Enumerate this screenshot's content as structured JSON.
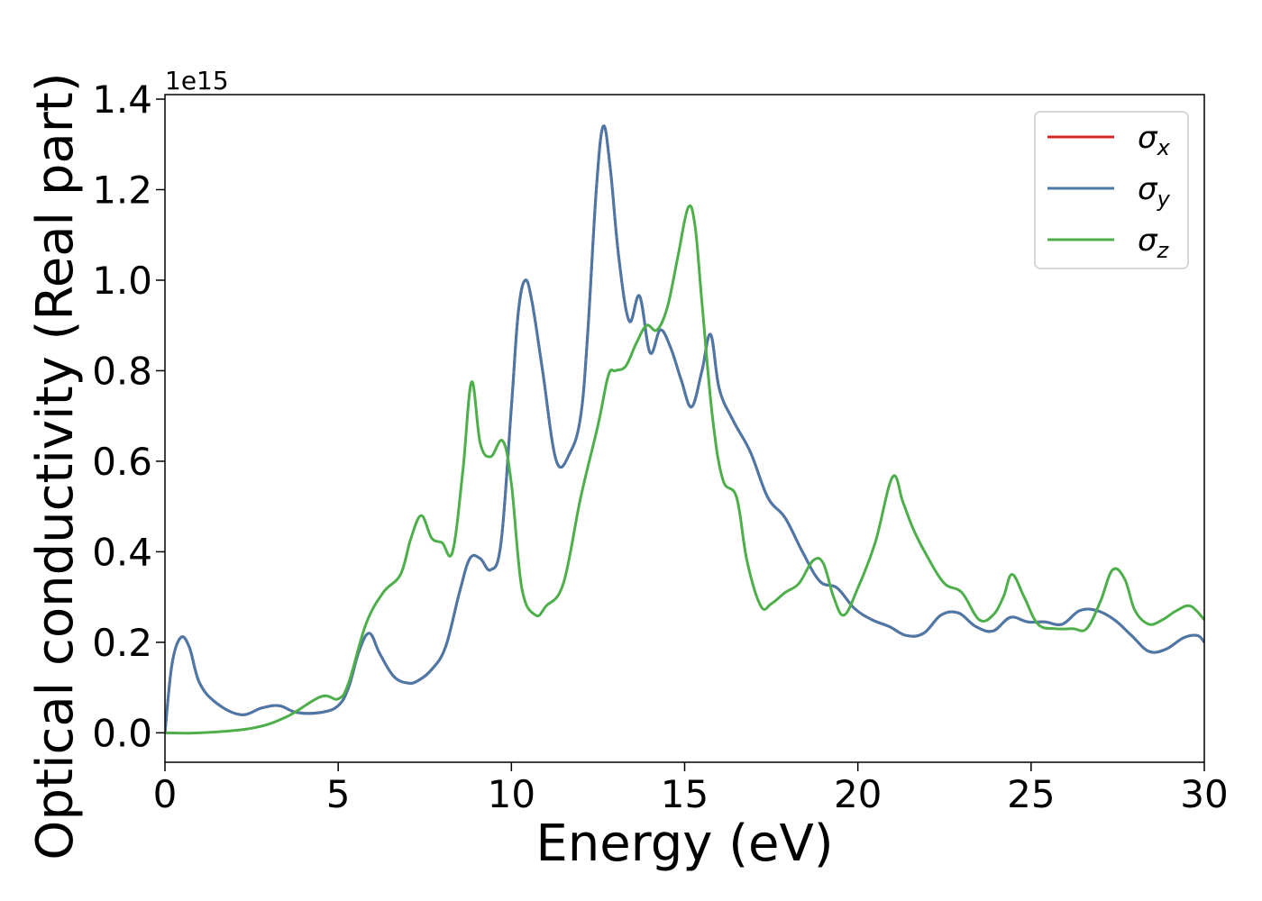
{
  "chart_data": {
    "type": "line",
    "title": "",
    "xlabel": "Energy (eV)",
    "ylabel": "Optical conductivity (Real part)",
    "y_offset_text": "1e15",
    "xlim": [
      0,
      30
    ],
    "ylim": [
      -0.065,
      1.41
    ],
    "x_ticks": [
      0,
      5,
      10,
      15,
      20,
      25,
      30
    ],
    "x_tick_labels": [
      "0",
      "5",
      "10",
      "15",
      "20",
      "25",
      "30"
    ],
    "y_ticks": [
      0.0,
      0.2,
      0.4,
      0.6,
      0.8,
      1.0,
      1.2,
      1.4
    ],
    "y_tick_labels": [
      "0.0",
      "0.2",
      "0.4",
      "0.6",
      "0.8",
      "1.0",
      "1.2",
      "1.4"
    ],
    "grid": false,
    "legend_position": "top-right",
    "series": [
      {
        "name": "σx",
        "legend_base": "σ",
        "legend_sub": "x",
        "color": "#d62728",
        "x": [
          0,
          0.2,
          0.45,
          0.7,
          1.0,
          1.5,
          2.2,
          2.8,
          3.3,
          3.8,
          4.5,
          5.0,
          5.3,
          5.6,
          5.9,
          6.2,
          6.6,
          7.0,
          7.3,
          7.7,
          8.1,
          8.5,
          8.8,
          9.1,
          9.4,
          9.7,
          10.0,
          10.2,
          10.4,
          10.6,
          10.9,
          11.3,
          11.7,
          12.0,
          12.2,
          12.45,
          12.65,
          12.85,
          13.1,
          13.4,
          13.7,
          14.0,
          14.3,
          14.6,
          14.9,
          15.2,
          15.5,
          15.75,
          16.0,
          16.4,
          16.9,
          17.4,
          17.9,
          18.4,
          18.9,
          19.4,
          19.9,
          20.4,
          20.9,
          21.4,
          21.9,
          22.4,
          22.9,
          23.4,
          23.9,
          24.4,
          24.9,
          25.4,
          25.9,
          26.4,
          26.9,
          27.4,
          27.9,
          28.4,
          28.9,
          29.4,
          29.8,
          30.0
        ],
        "y": [
          0.0,
          0.15,
          0.21,
          0.19,
          0.11,
          0.065,
          0.04,
          0.055,
          0.06,
          0.045,
          0.045,
          0.06,
          0.1,
          0.18,
          0.22,
          0.175,
          0.125,
          0.11,
          0.115,
          0.14,
          0.19,
          0.31,
          0.385,
          0.385,
          0.36,
          0.42,
          0.72,
          0.93,
          1.0,
          0.95,
          0.8,
          0.6,
          0.62,
          0.7,
          0.88,
          1.2,
          1.34,
          1.25,
          1.05,
          0.91,
          0.965,
          0.84,
          0.89,
          0.85,
          0.78,
          0.72,
          0.8,
          0.88,
          0.76,
          0.69,
          0.62,
          0.52,
          0.475,
          0.4,
          0.335,
          0.32,
          0.275,
          0.25,
          0.235,
          0.215,
          0.22,
          0.26,
          0.265,
          0.235,
          0.225,
          0.255,
          0.245,
          0.245,
          0.24,
          0.27,
          0.27,
          0.25,
          0.215,
          0.18,
          0.185,
          0.21,
          0.215,
          0.2
        ]
      },
      {
        "name": "σy",
        "legend_base": "σ",
        "legend_sub": "y",
        "color": "#4a78a8",
        "x": [
          0,
          0.2,
          0.45,
          0.7,
          1.0,
          1.5,
          2.2,
          2.8,
          3.3,
          3.8,
          4.5,
          5.0,
          5.3,
          5.6,
          5.9,
          6.2,
          6.6,
          7.0,
          7.3,
          7.7,
          8.1,
          8.5,
          8.8,
          9.1,
          9.4,
          9.7,
          10.0,
          10.2,
          10.4,
          10.6,
          10.9,
          11.3,
          11.7,
          12.0,
          12.2,
          12.45,
          12.65,
          12.85,
          13.1,
          13.4,
          13.7,
          14.0,
          14.3,
          14.6,
          14.9,
          15.2,
          15.5,
          15.75,
          16.0,
          16.4,
          16.9,
          17.4,
          17.9,
          18.4,
          18.9,
          19.4,
          19.9,
          20.4,
          20.9,
          21.4,
          21.9,
          22.4,
          22.9,
          23.4,
          23.9,
          24.4,
          24.9,
          25.4,
          25.9,
          26.4,
          26.9,
          27.4,
          27.9,
          28.4,
          28.9,
          29.4,
          29.8,
          30.0
        ],
        "y": [
          0.0,
          0.15,
          0.21,
          0.19,
          0.11,
          0.065,
          0.04,
          0.055,
          0.06,
          0.045,
          0.045,
          0.06,
          0.1,
          0.18,
          0.22,
          0.175,
          0.125,
          0.11,
          0.115,
          0.14,
          0.19,
          0.31,
          0.385,
          0.385,
          0.36,
          0.42,
          0.72,
          0.93,
          1.0,
          0.95,
          0.8,
          0.6,
          0.62,
          0.7,
          0.88,
          1.2,
          1.34,
          1.25,
          1.05,
          0.91,
          0.965,
          0.84,
          0.89,
          0.85,
          0.78,
          0.72,
          0.8,
          0.88,
          0.76,
          0.69,
          0.62,
          0.52,
          0.475,
          0.4,
          0.335,
          0.32,
          0.275,
          0.25,
          0.235,
          0.215,
          0.22,
          0.26,
          0.265,
          0.235,
          0.225,
          0.255,
          0.245,
          0.245,
          0.24,
          0.27,
          0.27,
          0.25,
          0.215,
          0.18,
          0.185,
          0.21,
          0.215,
          0.2
        ]
      },
      {
        "name": "σz",
        "legend_base": "σ",
        "legend_sub": "z",
        "color": "#4daf4a",
        "x": [
          0,
          1.0,
          2.5,
          3.5,
          4.5,
          5.0,
          5.3,
          5.8,
          6.3,
          6.8,
          7.1,
          7.4,
          7.7,
          8.0,
          8.3,
          8.6,
          8.85,
          9.1,
          9.4,
          9.75,
          10.0,
          10.3,
          10.7,
          11.0,
          11.5,
          12.0,
          12.5,
          12.8,
          13.0,
          13.3,
          13.6,
          13.9,
          14.2,
          14.5,
          14.8,
          15.1,
          15.3,
          15.5,
          15.8,
          16.1,
          16.5,
          16.8,
          17.2,
          17.5,
          17.9,
          18.3,
          18.7,
          19.0,
          19.3,
          19.6,
          20.0,
          20.5,
          21.0,
          21.3,
          21.6,
          22.0,
          22.5,
          23.0,
          23.5,
          23.9,
          24.2,
          24.45,
          24.8,
          25.2,
          25.7,
          26.2,
          26.6,
          27.0,
          27.35,
          27.7,
          28.0,
          28.4,
          28.8,
          29.2,
          29.6,
          30.0
        ],
        "y": [
          0.0,
          0.0,
          0.01,
          0.035,
          0.08,
          0.075,
          0.11,
          0.24,
          0.31,
          0.35,
          0.43,
          0.48,
          0.43,
          0.42,
          0.4,
          0.58,
          0.775,
          0.64,
          0.61,
          0.645,
          0.55,
          0.32,
          0.26,
          0.28,
          0.33,
          0.52,
          0.68,
          0.79,
          0.8,
          0.81,
          0.86,
          0.9,
          0.89,
          0.94,
          1.05,
          1.16,
          1.12,
          0.95,
          0.7,
          0.56,
          0.52,
          0.38,
          0.28,
          0.285,
          0.31,
          0.33,
          0.38,
          0.375,
          0.3,
          0.26,
          0.32,
          0.42,
          0.565,
          0.51,
          0.45,
          0.39,
          0.33,
          0.31,
          0.25,
          0.26,
          0.3,
          0.35,
          0.3,
          0.24,
          0.23,
          0.23,
          0.23,
          0.29,
          0.36,
          0.34,
          0.27,
          0.24,
          0.25,
          0.27,
          0.28,
          0.25
        ]
      }
    ]
  }
}
